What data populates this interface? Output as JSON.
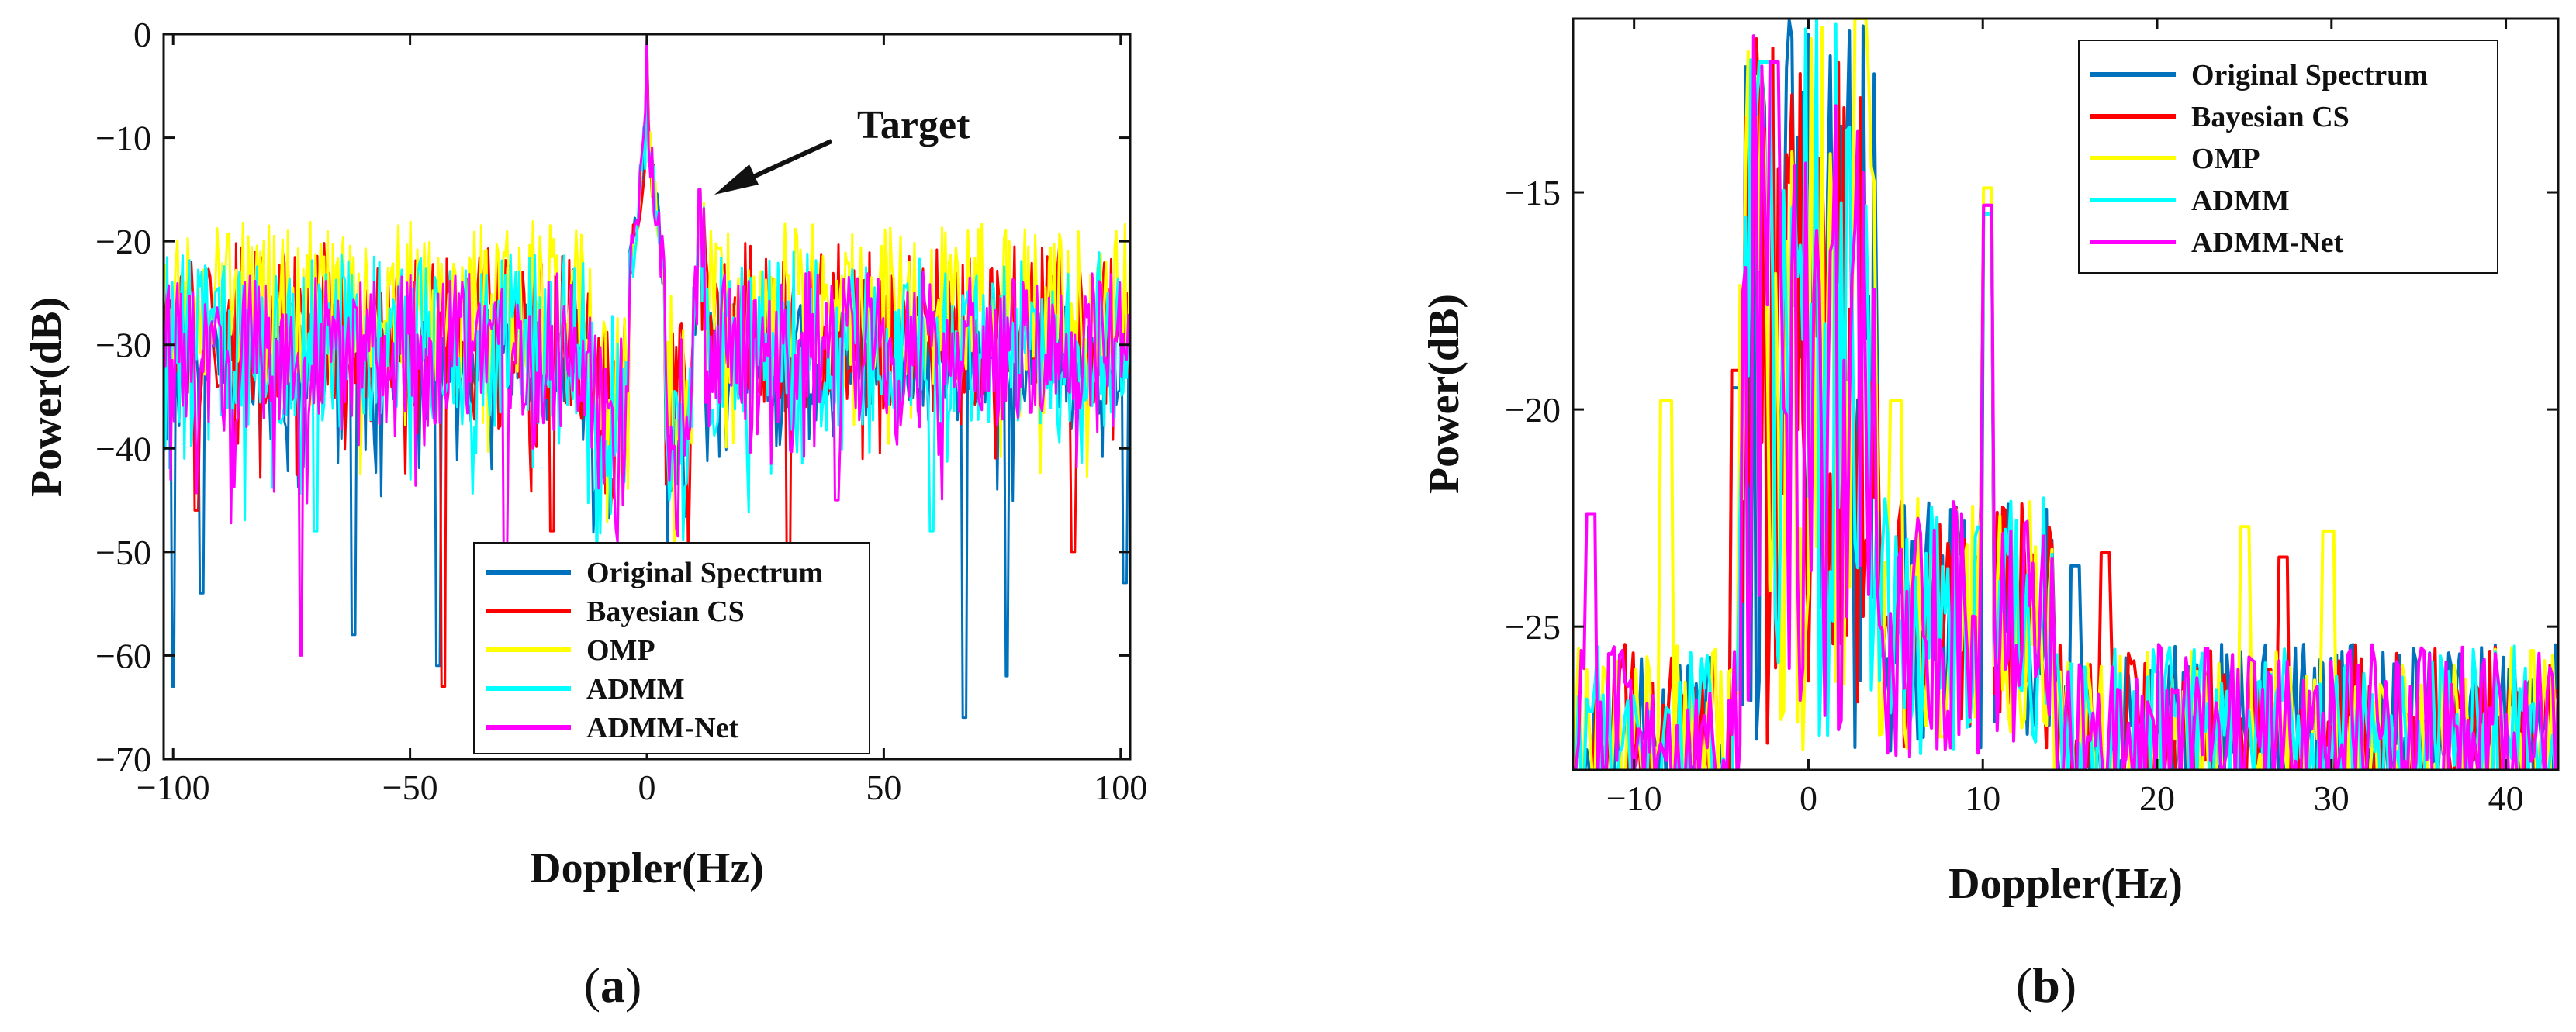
{
  "figure": {
    "captions": [
      {
        "open": "(",
        "letter": "a",
        "close": ")"
      },
      {
        "open": "(",
        "letter": "b",
        "close": ")"
      }
    ]
  },
  "chart_data": [
    {
      "type": "line",
      "panel": "a",
      "xlabel": "Doppler(Hz)",
      "ylabel": "Power(dB)",
      "xlim": [
        -102,
        102
      ],
      "ylim": [
        -70,
        0
      ],
      "xticks": [
        -100,
        -50,
        0,
        50,
        100
      ],
      "xtick_labels": [
        "−100",
        "−50",
        "0",
        "50",
        "100"
      ],
      "yticks": [
        0,
        -10,
        -20,
        -30,
        -40,
        -50,
        -60,
        -70
      ],
      "ytick_labels": [
        "0",
        "−10",
        "−20",
        "−30",
        "−40",
        "−50",
        "−60",
        "−70"
      ],
      "grid": false,
      "legend_position": "bottom-right",
      "annotation": {
        "text": "Target",
        "arrow_to": {
          "x": 12,
          "y": -15
        }
      },
      "series": [
        {
          "name": "Original Spectrum",
          "color": "#0072BD",
          "peaks": [
            {
              "x": 0,
              "y": 0
            },
            {
              "x": 11,
              "y": -15
            }
          ],
          "floor": [
            -36,
            -26
          ],
          "dips": [
            {
              "x": -100,
              "y": -63
            },
            {
              "x": -94,
              "y": -54
            },
            {
              "x": -62,
              "y": -58
            },
            {
              "x": -44,
              "y": -61
            },
            {
              "x": 67,
              "y": -66
            },
            {
              "x": 76,
              "y": -62
            },
            {
              "x": 101,
              "y": -53
            }
          ]
        },
        {
          "name": "Bayesian CS",
          "color": "#FF0000",
          "peaks": [
            {
              "x": 0,
              "y": 0
            },
            {
              "x": 11,
              "y": -15
            }
          ],
          "floor": [
            -36,
            -20
          ],
          "dips": [
            {
              "x": -95,
              "y": -46
            },
            {
              "x": -43,
              "y": -63
            },
            {
              "x": -20,
              "y": -48
            },
            {
              "x": 30,
              "y": -50
            },
            {
              "x": 90,
              "y": -50
            }
          ]
        },
        {
          "name": "OMP",
          "color": "#FFFF00",
          "peaks": [
            {
              "x": 0,
              "y": 0
            },
            {
              "x": 11,
              "y": -15
            }
          ],
          "floor": [
            -34,
            -18
          ],
          "dips": []
        },
        {
          "name": "ADMM",
          "color": "#00FFFF",
          "peaks": [
            {
              "x": 0,
              "y": 0
            },
            {
              "x": 11,
              "y": -15
            }
          ],
          "floor": [
            -38,
            -21
          ],
          "dips": [
            {
              "x": -70,
              "y": -48
            },
            {
              "x": 60,
              "y": -48
            }
          ]
        },
        {
          "name": "ADMM-Net",
          "color": "#FF00FF",
          "peaks": [
            {
              "x": 0,
              "y": 0
            },
            {
              "x": 11,
              "y": -15
            }
          ],
          "floor": [
            -38,
            -23
          ],
          "dips": [
            {
              "x": -73,
              "y": -60
            },
            {
              "x": -30,
              "y": -50
            },
            {
              "x": 40,
              "y": -45
            }
          ]
        }
      ]
    },
    {
      "type": "line",
      "panel": "b",
      "xlabel": "Doppler(Hz)",
      "ylabel": "Power(dB)",
      "xlim": [
        -13.5,
        43
      ],
      "ylim": [
        -28.3,
        -11
      ],
      "xticks": [
        -10,
        0,
        10,
        20,
        30,
        40
      ],
      "xtick_labels": [
        "−10",
        "0",
        "10",
        "20",
        "30",
        "40"
      ],
      "yticks": [
        -15,
        -20,
        -25
      ],
      "ytick_labels": [
        "−15",
        "−20",
        "−25"
      ],
      "grid": false,
      "legend_position": "top-right",
      "series": [
        {
          "name": "Original Spectrum",
          "color": "#0072BD",
          "peaks": [
            {
              "x": 10.3,
              "y": -15.5
            },
            {
              "x": 15.3,
              "y": -23.6
            },
            {
              "x": -4.2,
              "y": -19.5
            }
          ]
        },
        {
          "name": "Bayesian CS",
          "color": "#FF0000",
          "peaks": [
            {
              "x": 10.3,
              "y": -15.3
            },
            {
              "x": -4.2,
              "y": -19.1
            },
            {
              "x": 17,
              "y": -23.3
            },
            {
              "x": 27.2,
              "y": -23.4
            }
          ]
        },
        {
          "name": "OMP",
          "color": "#FFFF00",
          "peaks": [
            {
              "x": 10.3,
              "y": -14.9
            },
            {
              "x": 25,
              "y": -22.7
            },
            {
              "x": 29.8,
              "y": -22.8
            },
            {
              "x": -8.2,
              "y": -19.8
            },
            {
              "x": 5,
              "y": -19.8
            },
            {
              "x": 3,
              "y": -11
            }
          ]
        },
        {
          "name": "ADMM",
          "color": "#00FFFF",
          "peaks": [
            {
              "x": 10.3,
              "y": -15.5
            },
            {
              "x": -2.5,
              "y": -12
            }
          ]
        },
        {
          "name": "ADMM-Net",
          "color": "#FF00FF",
          "peaks": [
            {
              "x": 10.3,
              "y": -15.3
            },
            {
              "x": -2,
              "y": -12
            },
            {
              "x": -12.5,
              "y": -22.4
            }
          ]
        }
      ]
    }
  ]
}
